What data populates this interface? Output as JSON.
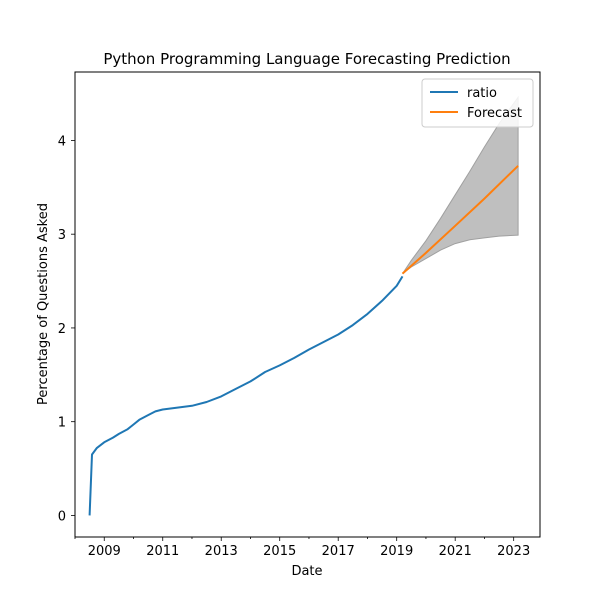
{
  "chart_data": {
    "type": "line",
    "title": "Python Programming Language Forecasting Prediction",
    "xlabel": "Date",
    "ylabel": "Percentage of Questions Asked",
    "xlim": [
      2008.0,
      2023.9
    ],
    "ylim": [
      -0.23,
      4.73
    ],
    "x_ticks": [
      2009,
      2011,
      2013,
      2015,
      2017,
      2019,
      2021,
      2023
    ],
    "x_tick_labels": [
      "2009",
      "2011",
      "2013",
      "2015",
      "2017",
      "2019",
      "2021",
      "2023"
    ],
    "x_minor_ticks": [
      2008,
      2010,
      2012,
      2014,
      2016,
      2018,
      2020,
      2022
    ],
    "y_ticks": [
      0,
      1,
      2,
      3,
      4
    ],
    "y_tick_labels": [
      "0",
      "1",
      "2",
      "3",
      "4"
    ],
    "grid": false,
    "legend_position": "top-right",
    "series": [
      {
        "name": "ratio",
        "color": "#1f77b4",
        "points": [
          [
            2008.5,
            0.0
          ],
          [
            2008.58,
            0.65
          ],
          [
            2008.75,
            0.72
          ],
          [
            2009.0,
            0.78
          ],
          [
            2009.3,
            0.83
          ],
          [
            2009.5,
            0.87
          ],
          [
            2009.8,
            0.92
          ],
          [
            2010.0,
            0.97
          ],
          [
            2010.2,
            1.02
          ],
          [
            2010.5,
            1.07
          ],
          [
            2010.75,
            1.11
          ],
          [
            2011.0,
            1.13
          ],
          [
            2011.5,
            1.15
          ],
          [
            2012.0,
            1.17
          ],
          [
            2012.5,
            1.21
          ],
          [
            2013.0,
            1.27
          ],
          [
            2013.5,
            1.35
          ],
          [
            2014.0,
            1.43
          ],
          [
            2014.5,
            1.53
          ],
          [
            2015.0,
            1.6
          ],
          [
            2015.5,
            1.68
          ],
          [
            2016.0,
            1.77
          ],
          [
            2016.5,
            1.85
          ],
          [
            2017.0,
            1.93
          ],
          [
            2017.5,
            2.03
          ],
          [
            2018.0,
            2.15
          ],
          [
            2018.5,
            2.29
          ],
          [
            2019.0,
            2.45
          ],
          [
            2019.2,
            2.55
          ]
        ]
      },
      {
        "name": "Forecast",
        "color": "#ff7f0e",
        "points": [
          [
            2019.2,
            2.58
          ],
          [
            2020.0,
            2.8
          ],
          [
            2021.0,
            3.09
          ],
          [
            2022.0,
            3.38
          ],
          [
            2023.15,
            3.73
          ]
        ]
      }
    ],
    "confidence_band": {
      "color": "#bfbfbf",
      "edge_color": "#a0a0a0",
      "points": [
        [
          2019.2,
          2.58,
          2.58
        ],
        [
          2019.5,
          2.65,
          2.72
        ],
        [
          2020.0,
          2.74,
          2.93
        ],
        [
          2020.5,
          2.83,
          3.17
        ],
        [
          2021.0,
          2.9,
          3.42
        ],
        [
          2021.5,
          2.94,
          3.67
        ],
        [
          2022.0,
          2.96,
          3.93
        ],
        [
          2022.5,
          2.98,
          4.18
        ],
        [
          2023.15,
          2.99,
          4.46
        ]
      ]
    }
  }
}
